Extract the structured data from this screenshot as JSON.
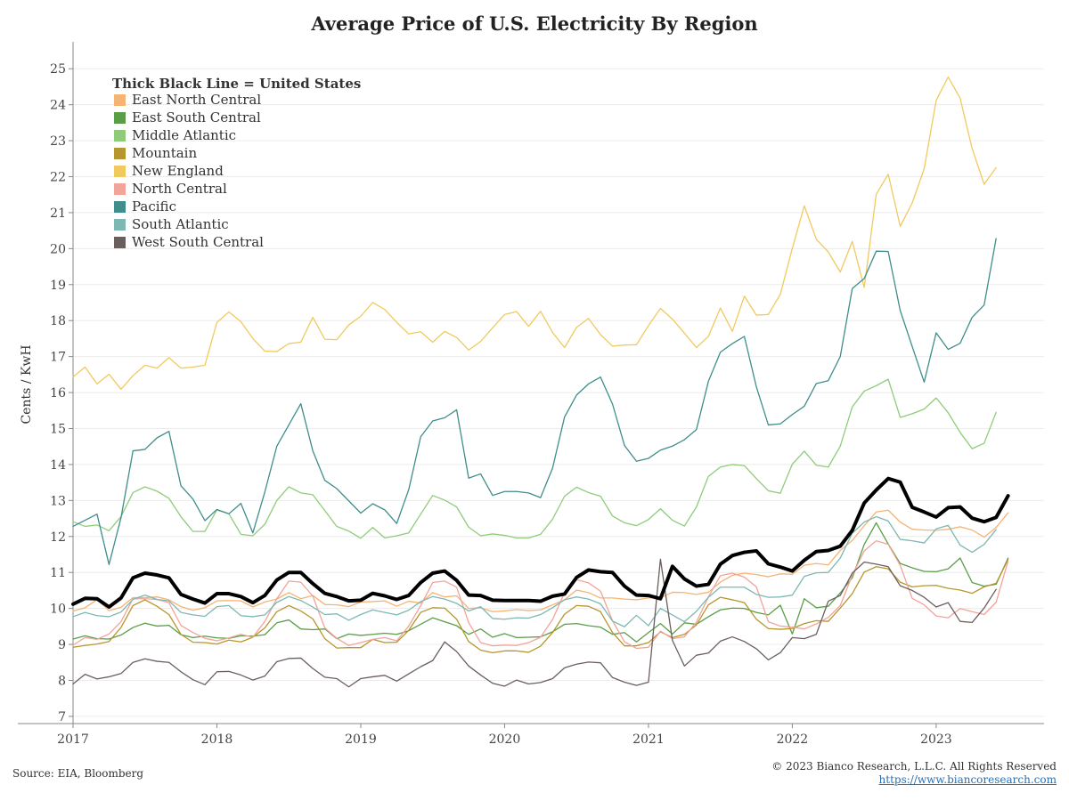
{
  "chart_data": {
    "type": "line",
    "title": "Average Price of U.S. Electricity By Region",
    "ylabel": "Cents / KwH",
    "xlabel": "",
    "ylim": [
      6.8,
      25.5
    ],
    "xlim": [
      2017.0,
      2023.75
    ],
    "y_ticks": [
      "7",
      "8",
      "9",
      "10",
      "11",
      "12",
      "13",
      "14",
      "15",
      "16",
      "17",
      "18",
      "19",
      "20",
      "21",
      "22",
      "23",
      "24",
      "25"
    ],
    "x_ticks": [
      "2017",
      "2018",
      "2019",
      "2020",
      "2021",
      "2022",
      "2023"
    ],
    "grid": "horizontal",
    "legend_title": "Thick Black Line = United States",
    "legend_position": "top-left",
    "x_start": "2017-01",
    "x_frequency": "monthly",
    "series": [
      {
        "name": "United States",
        "color": "#000000",
        "width": 4,
        "show_in_legend": false,
        "values": [
          10.12,
          10.28,
          10.27,
          10.04,
          10.29,
          10.85,
          10.98,
          10.93,
          10.85,
          10.39,
          10.26,
          10.15,
          10.41,
          10.41,
          10.33,
          10.16,
          10.36,
          10.79,
          11.0,
          11.0,
          10.69,
          10.42,
          10.33,
          10.21,
          10.23,
          10.42,
          10.35,
          10.25,
          10.36,
          10.72,
          10.98,
          11.04,
          10.78,
          10.37,
          10.36,
          10.23,
          10.22,
          10.22,
          10.22,
          10.2,
          10.34,
          10.4,
          10.86,
          11.07,
          11.02,
          11.0,
          10.62,
          10.37,
          10.36,
          10.27,
          11.17,
          10.82,
          10.62,
          10.67,
          11.23,
          11.47,
          11.56,
          11.6,
          11.24,
          11.15,
          11.04,
          11.34,
          11.58,
          11.61,
          11.73,
          12.17,
          12.93,
          13.29,
          13.61,
          13.51,
          12.81,
          12.68,
          12.54,
          12.8,
          12.82,
          12.51,
          12.41,
          12.53,
          13.13
        ]
      },
      {
        "name": "East North Central",
        "color": "#f5b374",
        "values": [
          9.93,
          10.02,
          10.24,
          9.94,
          10.03,
          10.3,
          10.3,
          10.32,
          10.24,
          10.05,
          9.95,
          10.02,
          10.21,
          10.22,
          10.21,
          10.04,
          10.18,
          10.26,
          10.44,
          10.27,
          10.36,
          10.11,
          10.1,
          10.05,
          10.18,
          10.19,
          10.21,
          10.06,
          10.2,
          10.15,
          10.44,
          10.32,
          10.35,
          10.0,
          10.02,
          9.91,
          9.93,
          9.97,
          9.94,
          9.96,
          10.1,
          10.24,
          10.51,
          10.44,
          10.29,
          10.29,
          10.26,
          10.24,
          10.29,
          10.29,
          10.45,
          10.44,
          10.39,
          10.45,
          10.73,
          10.92,
          10.98,
          10.94,
          10.88,
          10.96,
          10.95,
          11.2,
          11.25,
          11.21,
          11.61,
          11.89,
          12.3,
          12.68,
          12.73,
          12.4,
          12.2,
          12.18,
          12.17,
          12.2,
          12.27,
          12.18,
          11.98,
          12.25,
          12.66
        ]
      },
      {
        "name": "East South Central",
        "color": "#5a9e48",
        "values": [
          9.15,
          9.24,
          9.16,
          9.15,
          9.26,
          9.47,
          9.59,
          9.51,
          9.53,
          9.27,
          9.19,
          9.23,
          9.18,
          9.17,
          9.24,
          9.23,
          9.27,
          9.6,
          9.68,
          9.43,
          9.41,
          9.43,
          9.16,
          9.29,
          9.25,
          9.28,
          9.31,
          9.28,
          9.38,
          9.56,
          9.74,
          9.63,
          9.52,
          9.28,
          9.43,
          9.2,
          9.3,
          9.19,
          9.2,
          9.21,
          9.35,
          9.56,
          9.58,
          9.52,
          9.48,
          9.28,
          9.33,
          9.07,
          9.33,
          9.58,
          9.29,
          9.6,
          9.56,
          9.77,
          9.96,
          10.01,
          10.0,
          9.89,
          9.82,
          10.09,
          9.29,
          10.27,
          10.02,
          10.06,
          10.43,
          10.85,
          11.78,
          12.38,
          11.79,
          11.25,
          11.13,
          11.03,
          11.02,
          11.1,
          11.4,
          10.72,
          10.62,
          10.67,
          11.4
        ]
      },
      {
        "name": "Middle Atlantic",
        "color": "#8fcc7a",
        "values": [
          12.41,
          12.28,
          12.32,
          12.16,
          12.55,
          13.22,
          13.38,
          13.26,
          13.06,
          12.55,
          12.14,
          12.14,
          12.74,
          12.63,
          12.06,
          12.02,
          12.34,
          13.0,
          13.38,
          13.21,
          13.16,
          12.72,
          12.28,
          12.15,
          11.95,
          12.25,
          11.96,
          12.02,
          12.1,
          12.62,
          13.14,
          13.01,
          12.82,
          12.26,
          12.02,
          12.07,
          12.03,
          11.96,
          11.96,
          12.06,
          12.48,
          13.12,
          13.37,
          13.22,
          13.12,
          12.57,
          12.38,
          12.3,
          12.47,
          12.77,
          12.45,
          12.29,
          12.82,
          13.67,
          13.93,
          14.0,
          13.97,
          13.61,
          13.27,
          13.2,
          14.01,
          14.37,
          13.98,
          13.93,
          14.51,
          15.6,
          16.04,
          16.19,
          16.37,
          15.31,
          15.41,
          15.54,
          15.85,
          15.44,
          14.89,
          14.44,
          14.59,
          15.45
        ]
      },
      {
        "name": "Mountain",
        "color": "#b5972d",
        "values": [
          8.92,
          8.97,
          9.01,
          9.08,
          9.47,
          10.08,
          10.24,
          10.06,
          9.83,
          9.28,
          9.06,
          9.05,
          9.01,
          9.12,
          9.07,
          9.2,
          9.46,
          9.91,
          10.08,
          9.93,
          9.71,
          9.16,
          8.9,
          8.91,
          8.91,
          9.14,
          9.05,
          9.06,
          9.39,
          9.89,
          10.02,
          10.01,
          9.7,
          9.08,
          8.84,
          8.77,
          8.82,
          8.82,
          8.78,
          8.95,
          9.33,
          9.84,
          10.08,
          10.06,
          9.91,
          9.33,
          8.96,
          8.96,
          9.05,
          9.35,
          9.19,
          9.28,
          9.54,
          10.1,
          10.31,
          10.24,
          10.16,
          9.7,
          9.44,
          9.42,
          9.44,
          9.58,
          9.66,
          9.64,
          10.01,
          10.41,
          11.01,
          11.16,
          11.1,
          10.73,
          10.6,
          10.63,
          10.64,
          10.56,
          10.51,
          10.42,
          10.6,
          10.7,
          11.36
        ]
      },
      {
        "name": "New England",
        "color": "#f0ca5e",
        "values": [
          16.43,
          16.71,
          16.24,
          16.51,
          16.09,
          16.47,
          16.76,
          16.68,
          16.97,
          16.68,
          16.71,
          16.76,
          17.95,
          18.24,
          17.97,
          17.5,
          17.15,
          17.14,
          17.36,
          17.4,
          18.09,
          17.48,
          17.47,
          17.88,
          18.12,
          18.5,
          18.31,
          17.95,
          17.63,
          17.69,
          17.4,
          17.7,
          17.53,
          17.18,
          17.42,
          17.8,
          18.17,
          18.25,
          17.84,
          18.26,
          17.67,
          17.25,
          17.81,
          18.06,
          17.61,
          17.29,
          17.32,
          17.33,
          17.86,
          18.34,
          18.04,
          17.65,
          17.25,
          17.56,
          18.35,
          17.7,
          18.68,
          18.15,
          18.17,
          18.73,
          20.01,
          21.19,
          20.26,
          19.91,
          19.35,
          20.2,
          18.92,
          21.51,
          22.07,
          20.62,
          21.27,
          22.22,
          24.12,
          24.77,
          24.18,
          22.78,
          21.79,
          22.25
        ]
      },
      {
        "name": "North Central",
        "color": "#f2a39a",
        "values": [
          8.98,
          9.19,
          9.14,
          9.29,
          9.63,
          10.27,
          10.27,
          10.25,
          10.16,
          9.53,
          9.33,
          9.17,
          9.1,
          9.18,
          9.28,
          9.2,
          9.64,
          10.27,
          10.76,
          10.73,
          10.34,
          9.46,
          9.17,
          8.97,
          9.05,
          9.14,
          9.19,
          9.1,
          9.51,
          10.08,
          10.72,
          10.76,
          10.59,
          9.61,
          9.05,
          8.96,
          8.98,
          8.97,
          9.05,
          9.2,
          9.69,
          10.44,
          10.8,
          10.71,
          10.48,
          9.66,
          9.07,
          8.89,
          8.92,
          9.37,
          9.16,
          9.21,
          9.62,
          10.32,
          10.91,
          10.98,
          10.87,
          10.6,
          9.63,
          9.51,
          9.48,
          9.43,
          9.57,
          9.75,
          10.08,
          10.92,
          11.6,
          11.88,
          11.78,
          11.2,
          10.28,
          10.1,
          9.79,
          9.74,
          10.0,
          9.91,
          9.83,
          10.17,
          11.32
        ]
      },
      {
        "name": "Pacific",
        "color": "#3f8e8b",
        "values": [
          12.28,
          12.45,
          12.62,
          11.22,
          12.52,
          14.38,
          14.42,
          14.74,
          14.92,
          13.41,
          13.04,
          12.44,
          12.75,
          12.63,
          12.92,
          12.1,
          13.24,
          14.51,
          15.1,
          15.69,
          14.38,
          13.56,
          13.33,
          12.99,
          12.65,
          12.91,
          12.74,
          12.36,
          13.3,
          14.77,
          15.21,
          15.3,
          15.52,
          13.62,
          13.74,
          13.14,
          13.25,
          13.25,
          13.21,
          13.08,
          13.9,
          15.32,
          15.93,
          16.24,
          16.43,
          15.68,
          14.53,
          14.09,
          14.17,
          14.4,
          14.51,
          14.69,
          14.97,
          16.31,
          17.12,
          17.36,
          17.56,
          16.16,
          15.1,
          15.13,
          15.39,
          15.62,
          16.25,
          16.33,
          17.0,
          18.89,
          19.17,
          19.93,
          19.92,
          18.28,
          17.28,
          16.29,
          17.66,
          17.2,
          17.37,
          18.09,
          18.43,
          20.28
        ]
      },
      {
        "name": "South Atlantic",
        "color": "#7eb8b2",
        "values": [
          9.77,
          9.89,
          9.8,
          9.77,
          9.9,
          10.25,
          10.37,
          10.25,
          10.21,
          9.89,
          9.82,
          9.78,
          10.05,
          10.08,
          9.8,
          9.77,
          9.82,
          10.17,
          10.33,
          10.22,
          10.04,
          9.83,
          9.85,
          9.67,
          9.83,
          9.96,
          9.89,
          9.82,
          9.95,
          10.19,
          10.33,
          10.26,
          10.14,
          9.93,
          10.05,
          9.72,
          9.7,
          9.74,
          9.73,
          9.83,
          10.02,
          10.24,
          10.32,
          10.26,
          10.13,
          9.65,
          9.49,
          9.81,
          9.52,
          10.0,
          9.82,
          9.63,
          9.92,
          10.31,
          10.59,
          10.59,
          10.59,
          10.39,
          10.31,
          10.32,
          10.37,
          10.89,
          10.99,
          11.0,
          11.4,
          12.09,
          12.4,
          12.55,
          12.43,
          11.92,
          11.88,
          11.82,
          12.21,
          12.31,
          11.76,
          11.56,
          11.78,
          12.19
        ]
      },
      {
        "name": "West South Central",
        "color": "#6b5f5d",
        "values": [
          7.9,
          8.17,
          8.04,
          8.1,
          8.19,
          8.5,
          8.6,
          8.53,
          8.5,
          8.24,
          8.02,
          7.88,
          8.24,
          8.25,
          8.15,
          8.01,
          8.12,
          8.52,
          8.61,
          8.62,
          8.33,
          8.09,
          8.05,
          7.82,
          8.05,
          8.1,
          8.14,
          7.98,
          8.18,
          8.38,
          8.55,
          9.07,
          8.8,
          8.4,
          8.15,
          7.92,
          7.84,
          8.01,
          7.9,
          7.94,
          8.05,
          8.35,
          8.45,
          8.51,
          8.49,
          8.08,
          7.95,
          7.86,
          7.95,
          11.37,
          9.11,
          8.4,
          8.7,
          8.76,
          9.09,
          9.21,
          9.08,
          8.88,
          8.57,
          8.77,
          9.19,
          9.16,
          9.28,
          10.2,
          10.36,
          10.98,
          11.29,
          11.23,
          11.16,
          10.63,
          10.5,
          10.31,
          10.04,
          10.16,
          9.64,
          9.61,
          10.01,
          10.53
        ]
      }
    ]
  },
  "source_text": "Source: EIA, Bloomberg",
  "copyright_text": "© 2023 Bianco Research, L.L.C. All Rights Reserved",
  "website_text": "https://www.biancoresearch.com",
  "colors": {
    "grid": "#ececec",
    "axis": "#888888",
    "text": "#333333"
  }
}
